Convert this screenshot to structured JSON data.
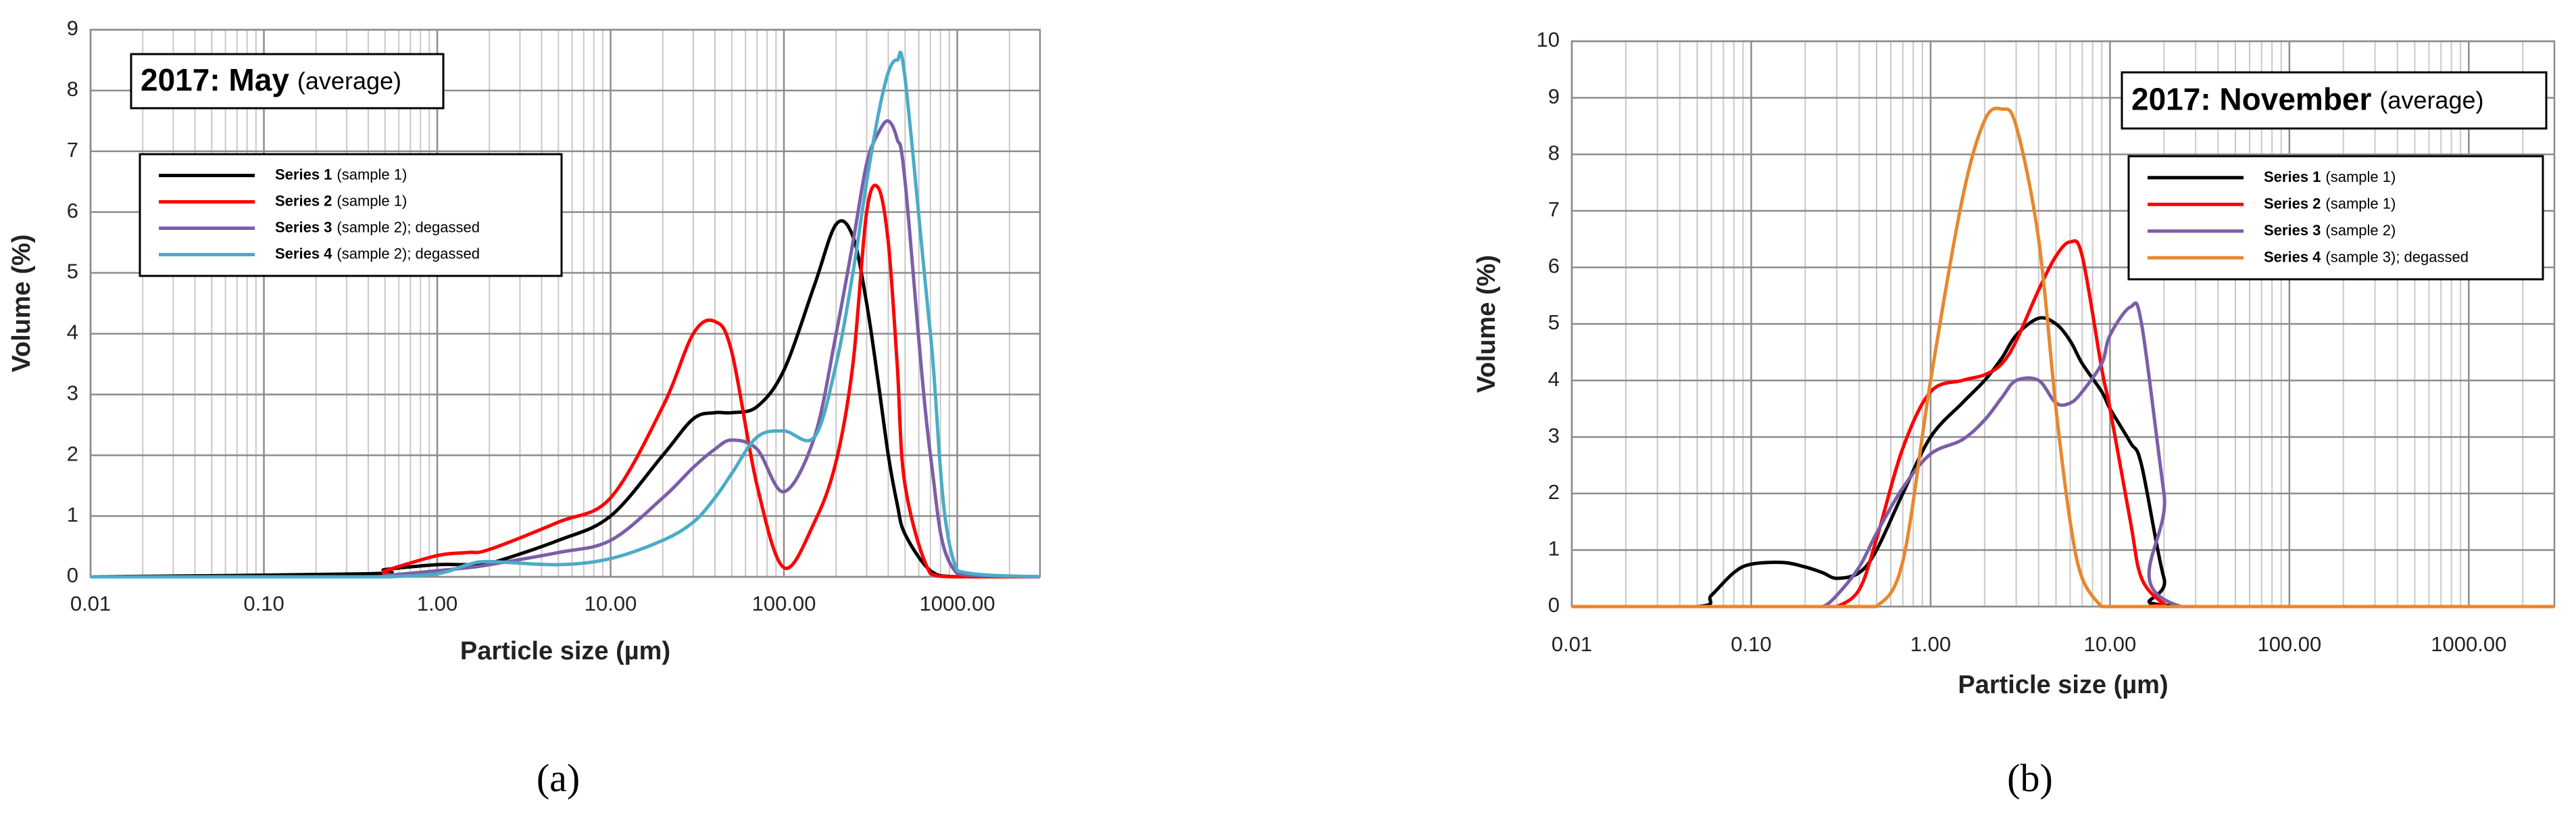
{
  "chart_data": [
    {
      "type": "line",
      "title": "2017: May",
      "subtitle": "(average)",
      "panel_label": "(a)",
      "x_label": "Particle size (µm)",
      "y_label": "Volume (%)",
      "x_scale": "log",
      "grid": true,
      "xlim": [
        0.01,
        3000
      ],
      "xticks": [
        {
          "value": 0.01,
          "label": "0.01"
        },
        {
          "value": 0.1,
          "label": "0.10"
        },
        {
          "value": 1,
          "label": "1.00"
        },
        {
          "value": 10,
          "label": "10.00"
        },
        {
          "value": 100,
          "label": "100.00"
        },
        {
          "value": 1000,
          "label": "1000.00"
        }
      ],
      "ylim": [
        0,
        9
      ],
      "yticks": [
        0,
        1,
        2,
        3,
        4,
        5,
        6,
        7,
        8,
        9
      ],
      "x": [
        0.01,
        0.4,
        0.5,
        1,
        1.5,
        2,
        5,
        10,
        20,
        30,
        40,
        50,
        70,
        100,
        150,
        200,
        250,
        300,
        350,
        400,
        450,
        500,
        700,
        1000,
        3000
      ],
      "series": [
        {
          "name": "Series 1",
          "note": "(sample 1)",
          "color": "#000000",
          "values": [
            0,
            0.05,
            0.12,
            0.2,
            0.2,
            0.22,
            0.6,
            1.0,
            2.0,
            2.6,
            2.7,
            2.7,
            2.8,
            3.4,
            4.8,
            5.8,
            5.6,
            4.5,
            3.2,
            2.0,
            1.2,
            0.7,
            0.1,
            0,
            0
          ]
        },
        {
          "name": "Series 2",
          "note": "(sample 1)",
          "color": "#ff0000",
          "values": [
            0,
            0,
            0.1,
            0.35,
            0.4,
            0.45,
            0.9,
            1.3,
            2.8,
            4.0,
            4.2,
            3.7,
            1.5,
            0.15,
            0.9,
            1.9,
            3.5,
            6.0,
            6.4,
            5.5,
            3.5,
            1.5,
            0.05,
            0,
            0
          ]
        },
        {
          "name": "Series 3",
          "note": "(sample 2); degassed",
          "color": "#7b5ea7",
          "values": [
            0,
            0,
            0.02,
            0.1,
            0.15,
            0.2,
            0.4,
            0.6,
            1.3,
            1.8,
            2.1,
            2.25,
            2.1,
            1.4,
            2.3,
            4.0,
            5.5,
            6.8,
            7.3,
            7.5,
            7.2,
            6.5,
            2.0,
            0.05,
            0
          ]
        },
        {
          "name": "Series 4",
          "note": "(sample 2); degassed",
          "color": "#4bacc6",
          "values": [
            0,
            0,
            0,
            0.05,
            0.2,
            0.25,
            0.2,
            0.3,
            0.6,
            0.9,
            1.3,
            1.7,
            2.3,
            2.4,
            2.3,
            3.5,
            5.0,
            6.5,
            7.6,
            8.3,
            8.5,
            8.2,
            4.0,
            0.1,
            0
          ]
        }
      ]
    },
    {
      "type": "line",
      "title": "2017: November",
      "subtitle": "(average)",
      "panel_label": "(b)",
      "x_label": "Particle size (µm)",
      "y_label": "Volume (%)",
      "x_scale": "log",
      "grid": true,
      "xlim": [
        0.01,
        3000
      ],
      "xticks": [
        {
          "value": 0.01,
          "label": "0.01"
        },
        {
          "value": 0.1,
          "label": "0.10"
        },
        {
          "value": 1,
          "label": "1.00"
        },
        {
          "value": 10,
          "label": "10.00"
        },
        {
          "value": 100,
          "label": "100.00"
        },
        {
          "value": 1000,
          "label": "1000.00"
        }
      ],
      "ylim": [
        0,
        10
      ],
      "yticks": [
        0,
        1,
        2,
        3,
        4,
        5,
        6,
        7,
        8,
        9,
        10
      ],
      "x": [
        0.01,
        0.05,
        0.06,
        0.08,
        0.1,
        0.15,
        0.2,
        0.25,
        0.3,
        0.4,
        0.5,
        0.7,
        1,
        1.5,
        2,
        2.5,
        3,
        4,
        5,
        6,
        7,
        9,
        10,
        13,
        15,
        20,
        25,
        3000
      ],
      "series": [
        {
          "name": "Series 1",
          "note": "(sample 1)",
          "color": "#000000",
          "values": [
            0,
            0,
            0.2,
            0.6,
            0.75,
            0.78,
            0.7,
            0.6,
            0.5,
            0.6,
            1.0,
            2.0,
            3.0,
            3.6,
            4.0,
            4.4,
            4.8,
            5.1,
            5.0,
            4.7,
            4.3,
            3.8,
            3.5,
            2.9,
            2.5,
            0.5,
            0,
            0
          ]
        },
        {
          "name": "Series 2",
          "note": "(sample 1)",
          "color": "#ff0000",
          "values": [
            0,
            0,
            0,
            0,
            0,
            0,
            0,
            0,
            0,
            0.3,
            1.2,
            2.8,
            3.8,
            4.0,
            4.1,
            4.3,
            4.7,
            5.6,
            6.2,
            6.45,
            6.2,
            4.2,
            3.5,
            1.5,
            0.5,
            0.05,
            0,
            0
          ]
        },
        {
          "name": "Series 3",
          "note": "(sample 2)",
          "color": "#7b5ea7",
          "values": [
            0,
            0,
            0,
            0,
            0,
            0,
            0,
            0,
            0.2,
            0.7,
            1.3,
            2.1,
            2.7,
            2.95,
            3.3,
            3.7,
            4.0,
            4.0,
            3.6,
            3.6,
            3.8,
            4.3,
            4.8,
            5.3,
            5.0,
            2.0,
            0,
            0
          ]
        },
        {
          "name": "Series 4",
          "note": "(sample 3); degassed",
          "color": "#e8872e",
          "values": [
            0,
            0,
            0,
            0,
            0,
            0,
            0,
            0,
            0,
            0,
            0,
            0.8,
            4.0,
            7.2,
            8.6,
            8.8,
            8.5,
            6.5,
            3.5,
            1.5,
            0.5,
            0,
            0,
            0,
            0,
            0,
            0,
            0
          ]
        }
      ]
    }
  ]
}
